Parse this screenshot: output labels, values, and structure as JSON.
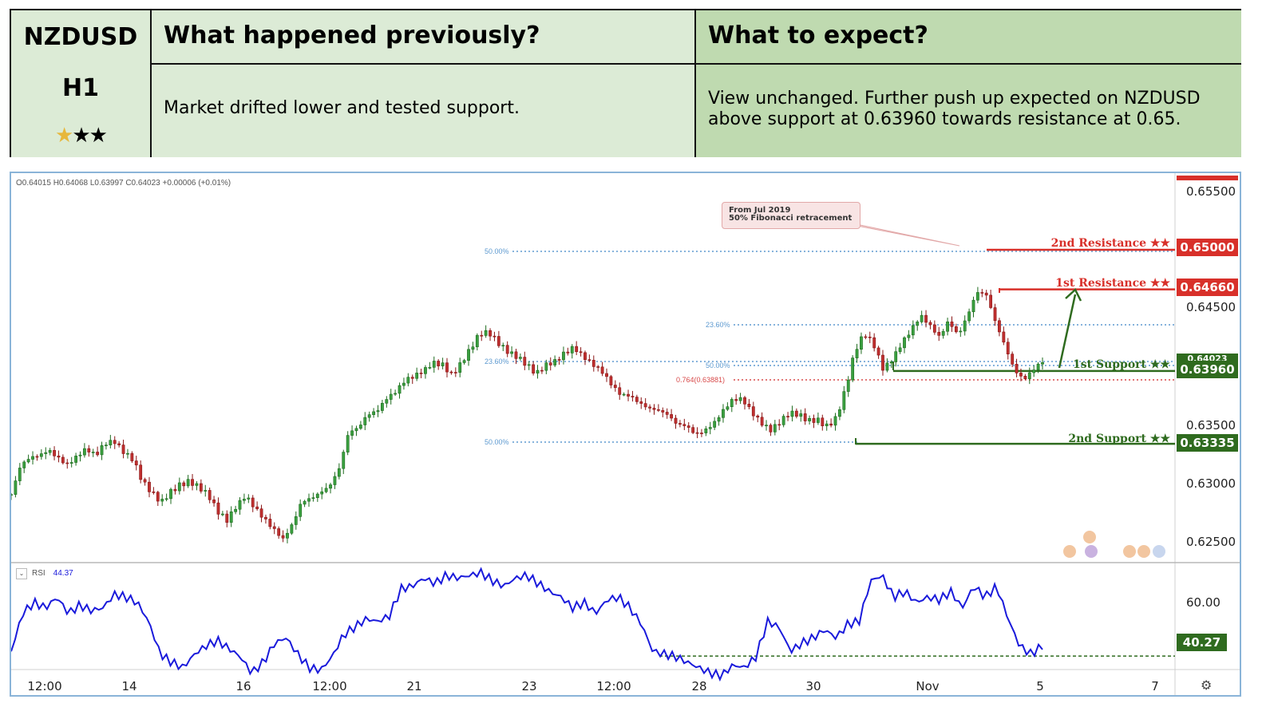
{
  "header": {
    "symbol": "NZDUSD",
    "timeframe": "H1",
    "stars": {
      "rating": 1,
      "max": 3,
      "filled_color": "#e7b73b",
      "empty_color": "#000000"
    },
    "prev_title": "What happened previously?",
    "expect_title": "What to expect?",
    "prev_text": "Market drifted lower and tested support.",
    "expect_text": "View unchanged. Further push up expected on NZDUSD above support at 0.63960 towards resistance at 0.65."
  },
  "chart_data": {
    "type": "candlestick",
    "ohlc_text": "O0.64015  H0.64068  L0.63997  C0.64023  +0.00006 (+0.01%)",
    "price_axis": {
      "ylim": [
        0.6225,
        0.6558
      ],
      "ticks": [
        "0.65500",
        "0.64500",
        "0.63500",
        "0.63000",
        "0.62500"
      ]
    },
    "x_ticks": [
      "12:00",
      "14",
      "16",
      "12:00",
      "21",
      "23",
      "12:00",
      "28",
      "30",
      "Nov",
      "5",
      "7"
    ],
    "levels": [
      {
        "name": "2nd Resistance ★★",
        "value": "0.65000",
        "color": "#d8302a"
      },
      {
        "name": "1st Resistance ★★",
        "value": "0.64660",
        "color": "#d8302a"
      },
      {
        "name": "1st Support ★★",
        "value": "0.63960",
        "color": "#2f6b1f"
      },
      {
        "name": "2nd Support ★★",
        "value": "0.63335",
        "color": "#2f6b1f"
      }
    ],
    "current_price_label": "0.64023",
    "fib_labels": {
      "a": "50.00%",
      "b": "23.60%",
      "c": "23.60%",
      "d": "50.00%",
      "e": "50.00%",
      "f": "0.764(0.63881)"
    },
    "annotation": {
      "line1": "From Jul 2019",
      "line2": "50% Fibonacci retracement"
    },
    "price_path": [
      0.629,
      0.6312,
      0.6318,
      0.6322,
      0.633,
      0.6325,
      0.6318,
      0.6322,
      0.6326,
      0.632,
      0.6333,
      0.6338,
      0.633,
      0.6322,
      0.63,
      0.6288,
      0.628,
      0.6292,
      0.6301,
      0.6305,
      0.6298,
      0.6288,
      0.6272,
      0.6265,
      0.628,
      0.6292,
      0.6282,
      0.627,
      0.6258,
      0.6248,
      0.6262,
      0.6285,
      0.629,
      0.6295,
      0.6298,
      0.631,
      0.634,
      0.6345,
      0.636,
      0.6365,
      0.6375,
      0.6378,
      0.6385,
      0.6388,
      0.6395,
      0.6405,
      0.6405,
      0.6395,
      0.6402,
      0.6412,
      0.6425,
      0.6428,
      0.6422,
      0.6416,
      0.641,
      0.64,
      0.639,
      0.6398,
      0.6404,
      0.6414,
      0.642,
      0.641,
      0.64,
      0.6392,
      0.6382,
      0.6376,
      0.6378,
      0.6372,
      0.6365,
      0.636,
      0.6355,
      0.6348,
      0.635,
      0.6345,
      0.6348,
      0.6352,
      0.636,
      0.6368,
      0.637,
      0.6362,
      0.6355,
      0.6348,
      0.6352,
      0.6357,
      0.6355,
      0.6352,
      0.6356,
      0.6352,
      0.6358,
      0.638,
      0.641,
      0.6425,
      0.6418,
      0.64,
      0.641,
      0.6422,
      0.643,
      0.644,
      0.6432,
      0.6425,
      0.6442,
      0.643,
      0.6445,
      0.6462,
      0.6458,
      0.6435,
      0.6418,
      0.64,
      0.6392,
      0.6398,
      0.6402
    ],
    "rsi": {
      "label": "RSI",
      "value": "44.37",
      "ticks": [
        "60.00"
      ],
      "ylim": [
        26,
        74
      ],
      "level_value": "40.27",
      "level_number": 40.27,
      "path": [
        42,
        56,
        60,
        58,
        62,
        56,
        59,
        57,
        58,
        63,
        62,
        60,
        53,
        41,
        38,
        36,
        41,
        44,
        46,
        43,
        40,
        34,
        38,
        45,
        47,
        41,
        36,
        35,
        40,
        48,
        51,
        54,
        53,
        55,
        65,
        66,
        69,
        67,
        70,
        69,
        70,
        71,
        68,
        66,
        69,
        70,
        67,
        64,
        62,
        58,
        60,
        56,
        61,
        62,
        58,
        52,
        42,
        41,
        40,
        38,
        36,
        34,
        33,
        37,
        36,
        40,
        53,
        51,
        42,
        45,
        47,
        50,
        47,
        52,
        53,
        68,
        70,
        62,
        64,
        60,
        62,
        61,
        64,
        58,
        66,
        62,
        66,
        54,
        44,
        41,
        44
      ]
    }
  },
  "colors": {
    "up": "#1e6b1e",
    "down": "#8a1515",
    "fib_blue": "#5e9ad0",
    "fib_red": "#d84a4a",
    "rsi_line": "#1a1adb"
  }
}
